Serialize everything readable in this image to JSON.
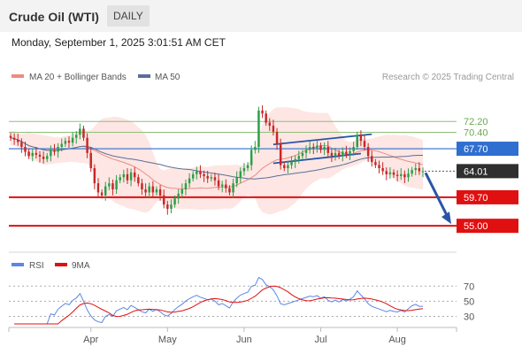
{
  "header": {
    "title": "Crude Oil (WTI)",
    "period": "DAILY",
    "timestamp": "Monday, September 1, 2025 3:01:51 AM CET"
  },
  "colors": {
    "up": "#2e9e48",
    "down": "#c62828",
    "bollinger_fill": "#fde0dc",
    "ma20": "#f08a82",
    "ma50": "#5a6f96",
    "resistance": "#2f6fd0",
    "support": "#e01010",
    "current": "#2f2f2f",
    "target_green": "#8ec07a",
    "trend_lines": "#2a55a6",
    "rsi": "#5b86e5",
    "rsi_ma": "#e01010"
  },
  "chart_data": [
    {
      "type": "candlestick",
      "title": "Crude Oil (WTI)",
      "interval": "DAILY",
      "x_ticks": [
        "Apr",
        "May",
        "Jun",
        "Jul",
        "Aug"
      ],
      "y_range": [
        54,
        75
      ],
      "legend": [
        {
          "label": "MA 20 + Bollinger Bands",
          "color": "#f08a82"
        },
        {
          "label": "MA 50",
          "color": "#5a6f96"
        }
      ],
      "watermark": "Research © 2025 Trading Central",
      "levels": [
        {
          "value": 72.2,
          "label": "72.20",
          "style": "target",
          "color": "#8ec07a"
        },
        {
          "value": 70.4,
          "label": "70.40",
          "style": "target",
          "color": "#8ec07a"
        },
        {
          "value": 67.7,
          "label": "67.70",
          "style": "resistance",
          "color": "#2f6fd0"
        },
        {
          "value": 64.01,
          "label": "64.01",
          "style": "current",
          "color": "#2f2f2f"
        },
        {
          "value": 59.7,
          "label": "59.70",
          "style": "support",
          "color": "#e01010"
        },
        {
          "value": 55.0,
          "label": "55.00",
          "style": "support",
          "color": "#e01010"
        }
      ],
      "closes": [
        69.5,
        69.2,
        68.8,
        68.0,
        67.2,
        66.5,
        67.0,
        66.7,
        66.4,
        66.0,
        66.5,
        67.5,
        67.2,
        68.0,
        68.5,
        69.0,
        68.7,
        69.5,
        70.0,
        71.0,
        69.5,
        67.0,
        64.5,
        62.0,
        60.5,
        60.0,
        61.5,
        62.0,
        61.0,
        62.5,
        63.0,
        63.5,
        62.5,
        63.8,
        63.0,
        62.0,
        61.0,
        60.5,
        61.5,
        60.5,
        61.0,
        60.0,
        58.5,
        57.8,
        58.5,
        59.5,
        60.3,
        61.0,
        62.0,
        62.8,
        63.5,
        64.0,
        63.5,
        63.2,
        62.8,
        63.0,
        62.5,
        61.5,
        61.8,
        61.2,
        60.5,
        62.0,
        63.0,
        64.0,
        64.5,
        65.0,
        67.5,
        68.0,
        74.0,
        73.5,
        72.0,
        71.5,
        70.5,
        68.5,
        65.0,
        64.5,
        65.0,
        65.5,
        66.0,
        66.5,
        67.0,
        67.5,
        68.0,
        67.8,
        68.2,
        67.5,
        68.0,
        67.0,
        66.5,
        67.0,
        66.5,
        67.2,
        66.8,
        67.3,
        68.0,
        70.0,
        69.0,
        68.0,
        66.5,
        65.5,
        65.0,
        64.5,
        64.0,
        63.5,
        63.8,
        63.4,
        63.2,
        63.5,
        63.0,
        63.6,
        64.2,
        64.5,
        64.0,
        64.01
      ],
      "rsi": {
        "labels": [
          "RSI",
          "9MA"
        ],
        "levels": [
          70,
          50,
          30
        ],
        "y_range": [
          20,
          82
        ]
      }
    }
  ]
}
